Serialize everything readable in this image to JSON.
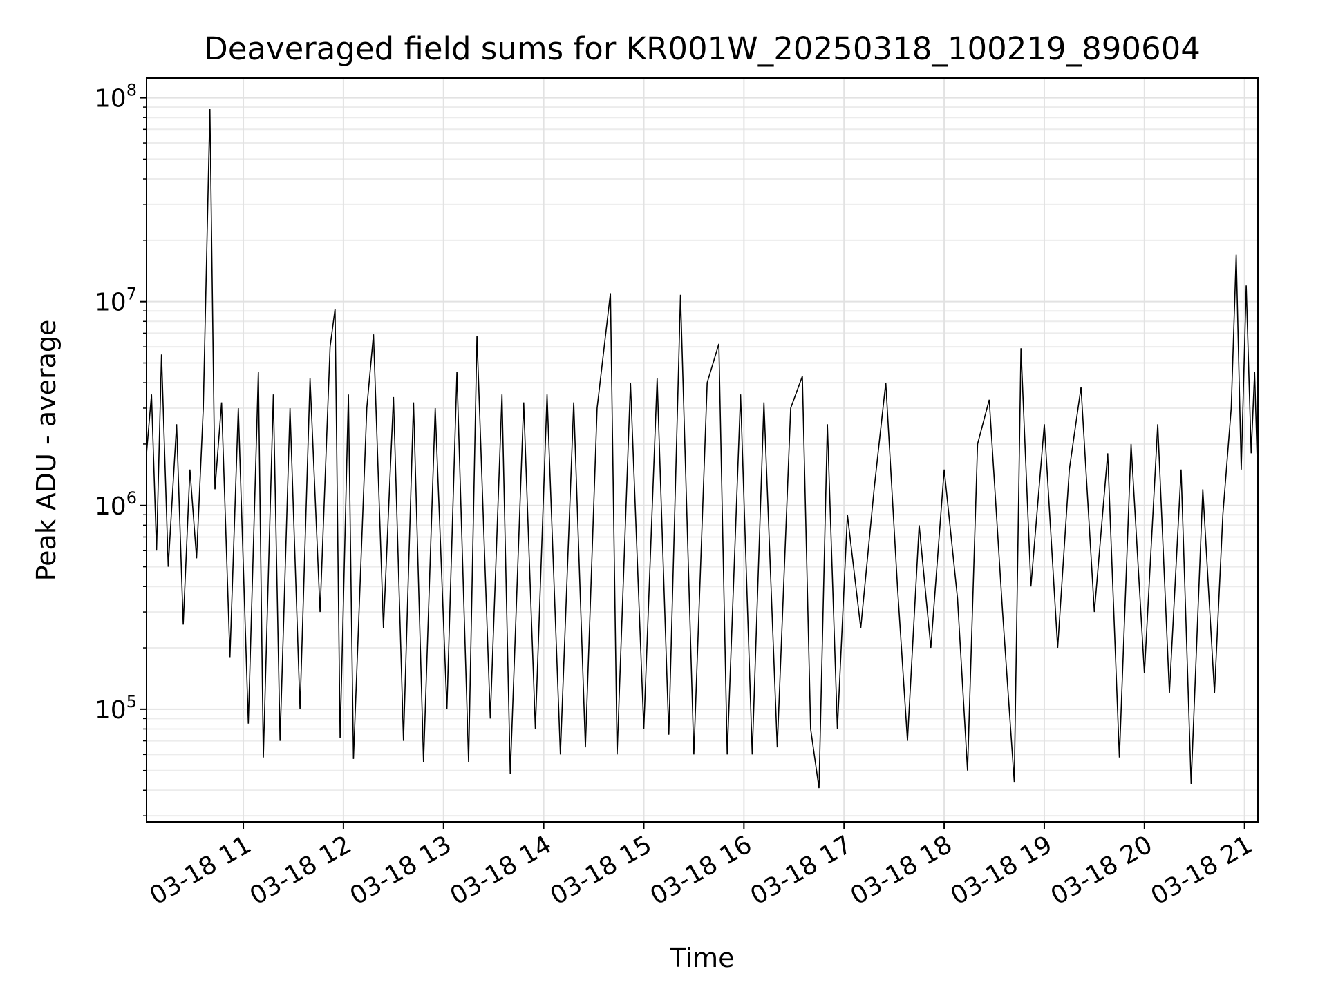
{
  "chart_data": {
    "type": "line",
    "title": "Deaveraged field sums for KR001W_20250318_100219_890604",
    "xlabel": "Time",
    "ylabel": "Peak ADU - average",
    "x_range": [
      "2025-03-18 10:02",
      "2025-03-18 21:08"
    ],
    "x_ticks": [
      {
        "value": "2025-03-18 11:00",
        "label": "03-18 11"
      },
      {
        "value": "2025-03-18 12:00",
        "label": "03-18 12"
      },
      {
        "value": "2025-03-18 13:00",
        "label": "03-18 13"
      },
      {
        "value": "2025-03-18 14:00",
        "label": "03-18 14"
      },
      {
        "value": "2025-03-18 15:00",
        "label": "03-18 15"
      },
      {
        "value": "2025-03-18 16:00",
        "label": "03-18 16"
      },
      {
        "value": "2025-03-18 17:00",
        "label": "03-18 17"
      },
      {
        "value": "2025-03-18 18:00",
        "label": "03-18 18"
      },
      {
        "value": "2025-03-18 19:00",
        "label": "03-18 19"
      },
      {
        "value": "2025-03-18 20:00",
        "label": "03-18 20"
      },
      {
        "value": "2025-03-18 21:00",
        "label": "03-18 21"
      }
    ],
    "y_scale": "log",
    "ylim": [
      28000,
      125000000
    ],
    "y_ticks": [
      {
        "value": 100000,
        "base": "10",
        "exp": "5"
      },
      {
        "value": 1000000,
        "base": "10",
        "exp": "6"
      },
      {
        "value": 10000000,
        "base": "10",
        "exp": "7"
      },
      {
        "value": 100000000,
        "base": "10",
        "exp": "8"
      }
    ],
    "grid": true,
    "minor_grid": true,
    "line_color": "#000000",
    "series": [
      {
        "values": [
          [
            "2025-03-18 10:02",
            1800000
          ],
          [
            "2025-03-18 10:05",
            3500000
          ],
          [
            "2025-03-18 10:08",
            600000
          ],
          [
            "2025-03-18 10:11",
            5500000
          ],
          [
            "2025-03-18 10:15",
            500000
          ],
          [
            "2025-03-18 10:20",
            2500000
          ],
          [
            "2025-03-18 10:24",
            260000
          ],
          [
            "2025-03-18 10:28",
            1500000
          ],
          [
            "2025-03-18 10:32",
            550000
          ],
          [
            "2025-03-18 10:36",
            3000000
          ],
          [
            "2025-03-18 10:40",
            88000000
          ],
          [
            "2025-03-18 10:43",
            1200000
          ],
          [
            "2025-03-18 10:47",
            3200000
          ],
          [
            "2025-03-18 10:52",
            180000
          ],
          [
            "2025-03-18 10:57",
            3000000
          ],
          [
            "2025-03-18 11:03",
            85000
          ],
          [
            "2025-03-18 11:09",
            4500000
          ],
          [
            "2025-03-18 11:12",
            58000
          ],
          [
            "2025-03-18 11:18",
            3500000
          ],
          [
            "2025-03-18 11:22",
            70000
          ],
          [
            "2025-03-18 11:28",
            3000000
          ],
          [
            "2025-03-18 11:34",
            100000
          ],
          [
            "2025-03-18 11:40",
            4200000
          ],
          [
            "2025-03-18 11:46",
            300000
          ],
          [
            "2025-03-18 11:52",
            6000000
          ],
          [
            "2025-03-18 11:55",
            9200000
          ],
          [
            "2025-03-18 11:58",
            72000
          ],
          [
            "2025-03-18 12:03",
            3500000
          ],
          [
            "2025-03-18 12:06",
            57000
          ],
          [
            "2025-03-18 12:14",
            3000000
          ],
          [
            "2025-03-18 12:18",
            6900000
          ],
          [
            "2025-03-18 12:24",
            250000
          ],
          [
            "2025-03-18 12:30",
            3400000
          ],
          [
            "2025-03-18 12:36",
            70000
          ],
          [
            "2025-03-18 12:42",
            3200000
          ],
          [
            "2025-03-18 12:48",
            55000
          ],
          [
            "2025-03-18 12:55",
            3000000
          ],
          [
            "2025-03-18 13:02",
            100000
          ],
          [
            "2025-03-18 13:08",
            4500000
          ],
          [
            "2025-03-18 13:15",
            55000
          ],
          [
            "2025-03-18 13:20",
            6800000
          ],
          [
            "2025-03-18 13:28",
            90000
          ],
          [
            "2025-03-18 13:35",
            3500000
          ],
          [
            "2025-03-18 13:40",
            48000
          ],
          [
            "2025-03-18 13:48",
            3200000
          ],
          [
            "2025-03-18 13:55",
            80000
          ],
          [
            "2025-03-18 14:02",
            3500000
          ],
          [
            "2025-03-18 14:10",
            60000
          ],
          [
            "2025-03-18 14:18",
            3200000
          ],
          [
            "2025-03-18 14:25",
            65000
          ],
          [
            "2025-03-18 14:32",
            3000000
          ],
          [
            "2025-03-18 14:40",
            11000000
          ],
          [
            "2025-03-18 14:44",
            60000
          ],
          [
            "2025-03-18 14:52",
            4000000
          ],
          [
            "2025-03-18 15:00",
            80000
          ],
          [
            "2025-03-18 15:08",
            4200000
          ],
          [
            "2025-03-18 15:15",
            75000
          ],
          [
            "2025-03-18 15:22",
            10800000
          ],
          [
            "2025-03-18 15:30",
            60000
          ],
          [
            "2025-03-18 15:38",
            4000000
          ],
          [
            "2025-03-18 15:45",
            6200000
          ],
          [
            "2025-03-18 15:50",
            60000
          ],
          [
            "2025-03-18 15:58",
            3500000
          ],
          [
            "2025-03-18 16:05",
            60000
          ],
          [
            "2025-03-18 16:12",
            3200000
          ],
          [
            "2025-03-18 16:20",
            65000
          ],
          [
            "2025-03-18 16:28",
            3000000
          ],
          [
            "2025-03-18 16:35",
            4300000
          ],
          [
            "2025-03-18 16:40",
            80000
          ],
          [
            "2025-03-18 16:45",
            41000
          ],
          [
            "2025-03-18 16:50",
            2500000
          ],
          [
            "2025-03-18 16:56",
            80000
          ],
          [
            "2025-03-18 17:02",
            900000
          ],
          [
            "2025-03-18 17:10",
            250000
          ],
          [
            "2025-03-18 17:18",
            1200000
          ],
          [
            "2025-03-18 17:25",
            4000000
          ],
          [
            "2025-03-18 17:32",
            400000
          ],
          [
            "2025-03-18 17:38",
            70000
          ],
          [
            "2025-03-18 17:45",
            800000
          ],
          [
            "2025-03-18 17:52",
            200000
          ],
          [
            "2025-03-18 18:00",
            1500000
          ],
          [
            "2025-03-18 18:08",
            350000
          ],
          [
            "2025-03-18 18:14",
            50000
          ],
          [
            "2025-03-18 18:20",
            2000000
          ],
          [
            "2025-03-18 18:27",
            3300000
          ],
          [
            "2025-03-18 18:35",
            300000
          ],
          [
            "2025-03-18 18:42",
            44000
          ],
          [
            "2025-03-18 18:46",
            5900000
          ],
          [
            "2025-03-18 18:52",
            400000
          ],
          [
            "2025-03-18 19:00",
            2500000
          ],
          [
            "2025-03-18 19:08",
            200000
          ],
          [
            "2025-03-18 19:15",
            1500000
          ],
          [
            "2025-03-18 19:22",
            3800000
          ],
          [
            "2025-03-18 19:30",
            300000
          ],
          [
            "2025-03-18 19:38",
            1800000
          ],
          [
            "2025-03-18 19:45",
            58000
          ],
          [
            "2025-03-18 19:52",
            2000000
          ],
          [
            "2025-03-18 20:00",
            150000
          ],
          [
            "2025-03-18 20:08",
            2500000
          ],
          [
            "2025-03-18 20:15",
            120000
          ],
          [
            "2025-03-18 20:22",
            1500000
          ],
          [
            "2025-03-18 20:28",
            43000
          ],
          [
            "2025-03-18 20:35",
            1200000
          ],
          [
            "2025-03-18 20:42",
            120000
          ],
          [
            "2025-03-18 20:47",
            900000
          ],
          [
            "2025-03-18 20:52",
            3000000
          ],
          [
            "2025-03-18 20:55",
            17000000
          ],
          [
            "2025-03-18 20:58",
            1500000
          ],
          [
            "2025-03-18 21:01",
            12000000
          ],
          [
            "2025-03-18 21:04",
            1800000
          ],
          [
            "2025-03-18 21:06",
            4500000
          ],
          [
            "2025-03-18 21:08",
            1300000
          ]
        ]
      }
    ]
  }
}
